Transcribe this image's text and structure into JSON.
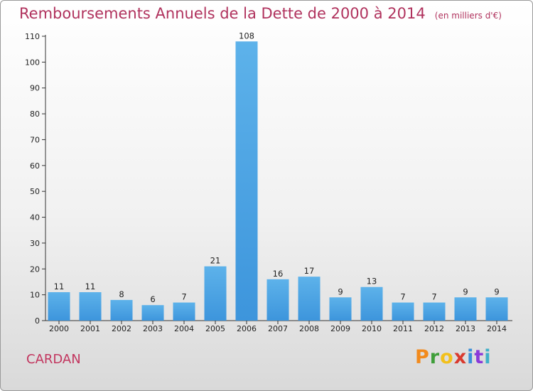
{
  "title": "Remboursements Annuels de la Dette de 2000 à 2014",
  "unit_note": "(en milliers d'€)",
  "commune": "CARDAN",
  "logo": {
    "letters": [
      "P",
      "r",
      "o",
      "x",
      "i",
      "t",
      "i"
    ],
    "colors": [
      "#f28a1c",
      "#3f9e3a",
      "#f2c01c",
      "#d93a2e",
      "#3a8fd9",
      "#8a3ad9",
      "#3fb0c9"
    ]
  },
  "colors": {
    "bar": "#3d95dc",
    "bar_light": "#5db2ea",
    "axis": "#333333",
    "title": "#b0325d"
  },
  "chart_data": {
    "type": "bar",
    "categories": [
      "2000",
      "2001",
      "2002",
      "2003",
      "2004",
      "2005",
      "2006",
      "2007",
      "2008",
      "2009",
      "2010",
      "2011",
      "2012",
      "2013",
      "2014"
    ],
    "values": [
      11,
      11,
      8,
      6,
      7,
      21,
      108,
      16,
      17,
      9,
      13,
      7,
      7,
      9,
      9
    ],
    "ylim": [
      0,
      110
    ],
    "yticks": [
      0,
      10,
      20,
      30,
      40,
      50,
      60,
      70,
      80,
      90,
      100,
      110
    ],
    "grid": false,
    "xlabel": "",
    "ylabel": ""
  }
}
